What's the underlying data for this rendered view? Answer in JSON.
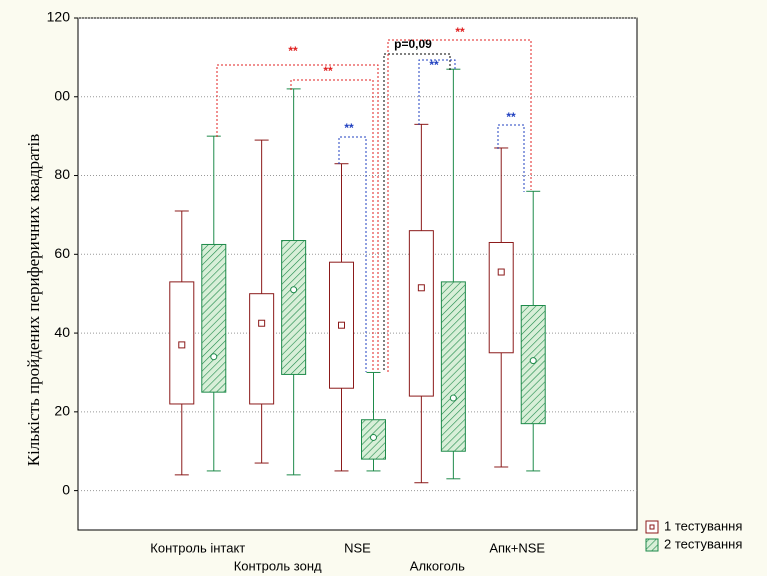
{
  "chart_data": {
    "type": "box",
    "ylabel": "Кількість пройдених периферичних квадратів",
    "categories": [
      "Контроль інтакт",
      "Контроль зонд",
      "NSE",
      "Алкоголь",
      "Апк+NSE"
    ],
    "ylim": [
      -10,
      120
    ],
    "yticks": [
      0,
      20,
      40,
      60,
      80,
      {
        "value": 100,
        "label": "00"
      },
      120
    ],
    "grid": true,
    "series": [
      {
        "name": "1 тестування",
        "color": "#8b1a1a",
        "hatched": false,
        "min": [
          4,
          7,
          5,
          2,
          6
        ],
        "q1": [
          22,
          22,
          26,
          24,
          35
        ],
        "median": [
          37,
          42.5,
          42,
          51.5,
          55.5
        ],
        "q3": [
          53,
          50,
          58,
          66,
          63
        ],
        "max": [
          71,
          89,
          83,
          93,
          87
        ]
      },
      {
        "name": "2 тестування",
        "color": "#1e8a4a",
        "hatched": true,
        "min": [
          5,
          4,
          5,
          3,
          5
        ],
        "q1": [
          25,
          29.5,
          8,
          10,
          17
        ],
        "median": [
          34,
          51,
          13.5,
          23.5,
          33
        ],
        "q3": [
          62.5,
          63.5,
          18,
          53,
          47
        ],
        "max": [
          90,
          102,
          30,
          107,
          76
        ]
      }
    ],
    "annotations": [
      {
        "text": "**",
        "color": "#e02020"
      },
      {
        "text": "**",
        "color": "#e02020"
      },
      {
        "text": "**",
        "color": "#2040c0"
      },
      {
        "text": "p=0,09",
        "color": "#000000"
      },
      {
        "text": "**",
        "color": "#e02020"
      },
      {
        "text": "**",
        "color": "#2040c0"
      },
      {
        "text": "**",
        "color": "#2040c0"
      }
    ]
  }
}
